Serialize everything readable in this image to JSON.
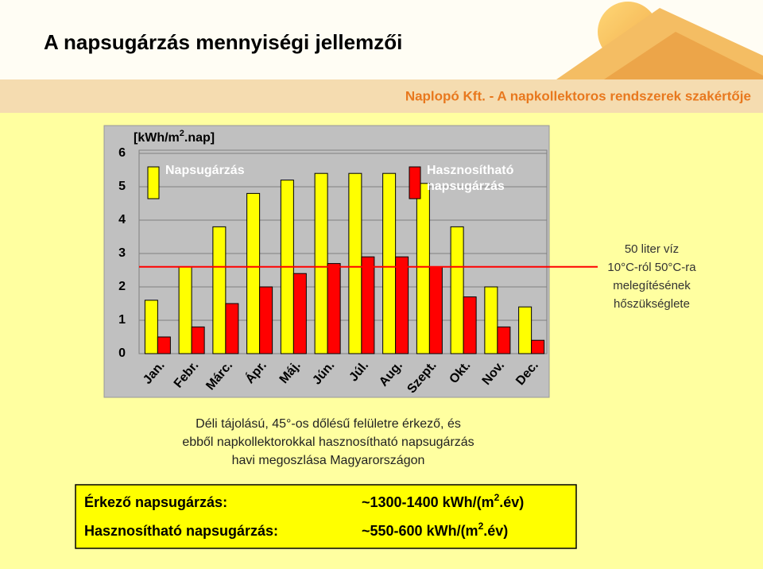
{
  "title": "A napsugárzás mennyiségi jellemzői",
  "company_line": "Naplopó Kft. - A napkollektoros rendszerek szakértője",
  "chart_data": {
    "type": "bar",
    "unit_label": {
      "text": "[kWh/m",
      "sup": "2",
      "after": ".nap]"
    },
    "categories": [
      "Jan.",
      "Febr.",
      "Márc.",
      "Ápr.",
      "Máj.",
      "Jún.",
      "Júl.",
      "Aug.",
      "Szept.",
      "Okt.",
      "Nov.",
      "Dec."
    ],
    "series": [
      {
        "name": "Napsugárzás",
        "color": "#ffff00",
        "values": [
          1.6,
          2.6,
          3.8,
          4.8,
          5.2,
          5.4,
          5.4,
          5.4,
          5.1,
          3.8,
          2.0,
          1.4
        ]
      },
      {
        "name": "Hasznosítható napsugárzás",
        "color": "#ff0000",
        "values": [
          0.5,
          0.8,
          1.5,
          2.0,
          2.4,
          2.7,
          2.9,
          2.9,
          2.6,
          1.7,
          0.8,
          0.4
        ]
      }
    ],
    "ylim": [
      0,
      6
    ],
    "yticks": [
      0,
      1,
      2,
      3,
      4,
      5,
      6
    ],
    "grid": true,
    "reference_line": {
      "value": 2.6,
      "color": "#ff0000",
      "label_lines": [
        "50 liter víz",
        "10°C-ról 50°C-ra",
        "melegítésének",
        "hőszükséglete"
      ]
    }
  },
  "caption_lines": [
    "Déli tájolású, 45°-os dőlésű felületre érkező, és",
    "ebből napkollektorokkal hasznosítható napsugárzás",
    "havi megoszlása Magyarországon"
  ],
  "summary": [
    {
      "label": "Érkező napsugárzás:",
      "value": {
        "text": "~1300-1400 kWh/(m",
        "sup": "2",
        "after": ".év)"
      }
    },
    {
      "label": "Hasznosítható napsugárzás:",
      "value": {
        "text": "~550-600 kWh/(m",
        "sup": "2",
        "after": ".év)"
      }
    }
  ]
}
